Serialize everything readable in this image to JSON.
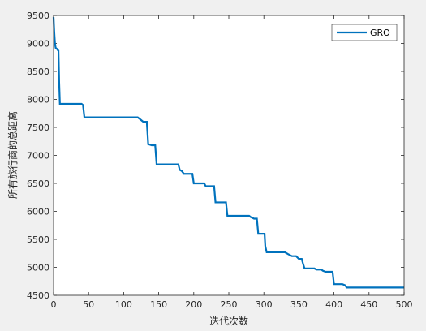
{
  "chart_data": {
    "type": "line",
    "title": "",
    "xlabel": "迭代次数",
    "ylabel": "所有旅行商的总距离",
    "xlim": [
      0,
      500
    ],
    "ylim": [
      4500,
      9500
    ],
    "xticks": [
      0,
      50,
      100,
      150,
      200,
      250,
      300,
      350,
      400,
      450,
      500
    ],
    "yticks": [
      4500,
      5000,
      5500,
      6000,
      6500,
      7000,
      7500,
      8000,
      8500,
      9000,
      9500
    ],
    "grid": false,
    "legend_position": "top-right",
    "series": [
      {
        "name": "GRO",
        "color": "#0072bd",
        "points": [
          [
            0,
            9470
          ],
          [
            1,
            9200
          ],
          [
            2,
            9000
          ],
          [
            3,
            8920
          ],
          [
            5,
            8900
          ],
          [
            6,
            8880
          ],
          [
            7,
            8870
          ],
          [
            8,
            8300
          ],
          [
            9,
            7920
          ],
          [
            40,
            7920
          ],
          [
            42,
            7900
          ],
          [
            44,
            7680
          ],
          [
            120,
            7680
          ],
          [
            123,
            7650
          ],
          [
            126,
            7620
          ],
          [
            128,
            7600
          ],
          [
            133,
            7600
          ],
          [
            135,
            7200
          ],
          [
            140,
            7180
          ],
          [
            145,
            7180
          ],
          [
            147,
            6840
          ],
          [
            178,
            6840
          ],
          [
            180,
            6740
          ],
          [
            183,
            6720
          ],
          [
            186,
            6670
          ],
          [
            198,
            6670
          ],
          [
            200,
            6500
          ],
          [
            215,
            6500
          ],
          [
            217,
            6450
          ],
          [
            229,
            6450
          ],
          [
            231,
            6160
          ],
          [
            246,
            6160
          ],
          [
            248,
            5920
          ],
          [
            279,
            5920
          ],
          [
            281,
            5900
          ],
          [
            286,
            5870
          ],
          [
            290,
            5870
          ],
          [
            292,
            5600
          ],
          [
            301,
            5600
          ],
          [
            302,
            5380
          ],
          [
            304,
            5270
          ],
          [
            330,
            5270
          ],
          [
            334,
            5240
          ],
          [
            340,
            5200
          ],
          [
            346,
            5200
          ],
          [
            350,
            5150
          ],
          [
            354,
            5150
          ],
          [
            356,
            5060
          ],
          [
            358,
            4980
          ],
          [
            372,
            4980
          ],
          [
            375,
            4960
          ],
          [
            382,
            4960
          ],
          [
            384,
            4940
          ],
          [
            388,
            4920
          ],
          [
            398,
            4920
          ],
          [
            400,
            4700
          ],
          [
            412,
            4700
          ],
          [
            416,
            4680
          ],
          [
            418,
            4640
          ],
          [
            500,
            4640
          ]
        ]
      }
    ]
  }
}
